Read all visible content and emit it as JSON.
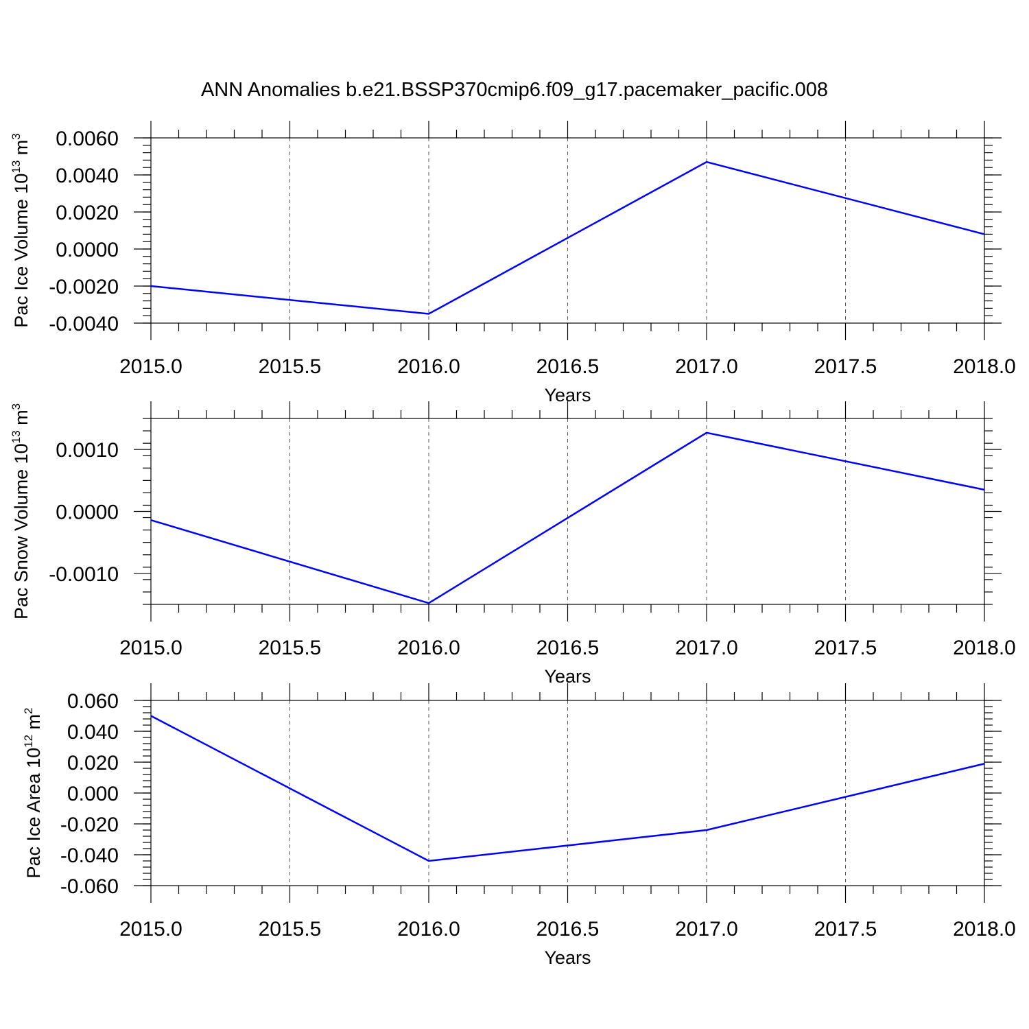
{
  "title": "ANN Anomalies b.e21.BSSP370cmip6.f09_g17.pacemaker_pacific.008",
  "colors": {
    "series": "#0000ff",
    "axes": "#000000",
    "grid": "#555555"
  },
  "chart_data": [
    {
      "type": "line",
      "ylabel": "Pac Ice Volume 10",
      "ylabel_sup": "13",
      "ylabel_unit": "m",
      "ylabel_unit_sup": "3",
      "xlabel": "Years",
      "x": [
        2015,
        2016,
        2017,
        2018
      ],
      "series": [
        {
          "values": [
            -0.002,
            -0.0035,
            0.0047,
            0.0008
          ]
        }
      ],
      "xlim": [
        2015.0,
        2018.0
      ],
      "ylim": [
        -0.004,
        0.006
      ],
      "xticks": [
        2015.0,
        2015.5,
        2016.0,
        2016.5,
        2017.0,
        2017.5,
        2018.0
      ],
      "xtick_labels": [
        "2015.0",
        "2015.5",
        "2016.0",
        "2016.5",
        "2017.0",
        "2017.5",
        "2018.0"
      ],
      "yticks": [
        -0.004,
        -0.002,
        0.0,
        0.002,
        0.004,
        0.006
      ],
      "ytick_labels": [
        "-0.0040",
        "-0.0020",
        "0.0000",
        "0.0020",
        "0.0040",
        "0.0060"
      ],
      "grid": "x-dashed"
    },
    {
      "type": "line",
      "ylabel": "Pac Snow Volume 10",
      "ylabel_sup": "13",
      "ylabel_unit": "m",
      "ylabel_unit_sup": "3",
      "xlabel": "Years",
      "x": [
        2015,
        2016,
        2017,
        2018
      ],
      "series": [
        {
          "values": [
            -0.00014,
            -0.00148,
            0.00127,
            0.00035
          ]
        }
      ],
      "xlim": [
        2015.0,
        2018.0
      ],
      "ylim": [
        -0.0015,
        0.0015
      ],
      "xticks": [
        2015.0,
        2015.5,
        2016.0,
        2016.5,
        2017.0,
        2017.5,
        2018.0
      ],
      "xtick_labels": [
        "2015.0",
        "2015.5",
        "2016.0",
        "2016.5",
        "2017.0",
        "2017.5",
        "2018.0"
      ],
      "yticks": [
        -0.001,
        0.0,
        0.001
      ],
      "ytick_labels": [
        "-0.0010",
        "0.0000",
        "0.0010"
      ],
      "grid": "x-dashed"
    },
    {
      "type": "line",
      "ylabel": "Pac Ice Area 10",
      "ylabel_sup": "12",
      "ylabel_unit": "m",
      "ylabel_unit_sup": "2",
      "xlabel": "Years",
      "x": [
        2015,
        2016,
        2017,
        2018
      ],
      "series": [
        {
          "values": [
            0.05,
            -0.044,
            -0.024,
            0.019
          ]
        }
      ],
      "xlim": [
        2015.0,
        2018.0
      ],
      "ylim": [
        -0.06,
        0.06
      ],
      "xticks": [
        2015.0,
        2015.5,
        2016.0,
        2016.5,
        2017.0,
        2017.5,
        2018.0
      ],
      "xtick_labels": [
        "2015.0",
        "2015.5",
        "2016.0",
        "2016.5",
        "2017.0",
        "2017.5",
        "2018.0"
      ],
      "yticks": [
        -0.06,
        -0.04,
        -0.02,
        0.0,
        0.02,
        0.04,
        0.06
      ],
      "ytick_labels": [
        "-0.060",
        "-0.040",
        "-0.020",
        "0.000",
        "0.020",
        "0.040",
        "0.060"
      ],
      "grid": "x-dashed"
    }
  ]
}
